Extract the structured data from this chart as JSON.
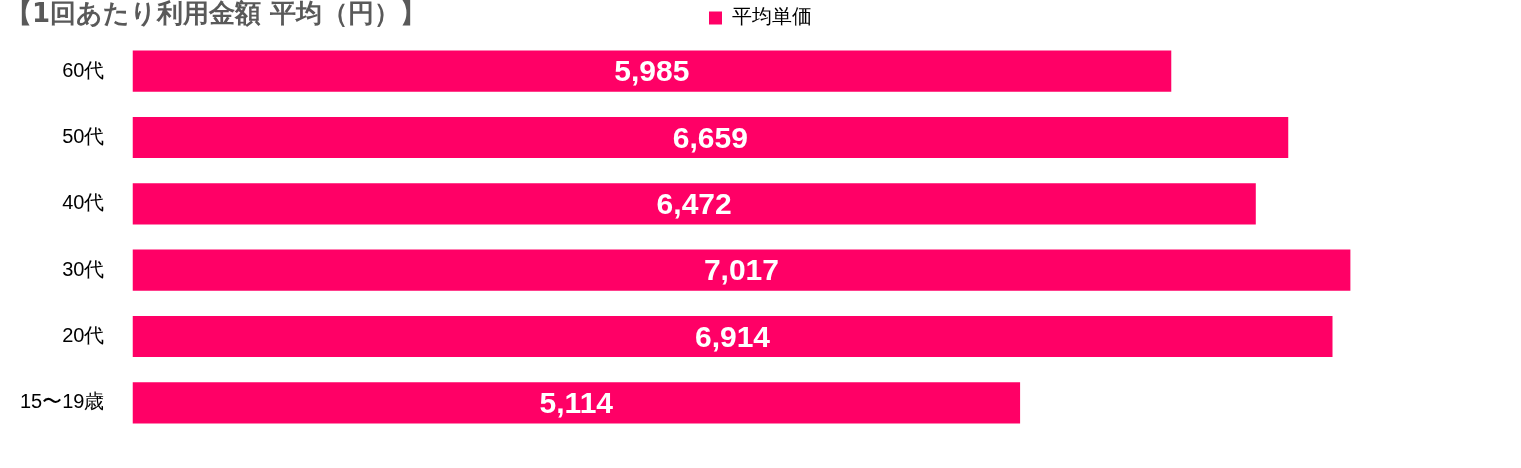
{
  "chart_data": {
    "type": "bar",
    "orientation": "horizontal",
    "title": "【1回あたり利用金額 平均（円）】",
    "categories": [
      "60代",
      "50代",
      "40代",
      "30代",
      "20代",
      "15〜19歳"
    ],
    "series": [
      {
        "name": "平均単価",
        "color": "#ff0066",
        "values": [
          5985,
          6659,
          6472,
          7017,
          6914,
          5114
        ],
        "value_labels": [
          "5,985",
          "6,659",
          "6,472",
          "7,017",
          "6,914",
          "5,114"
        ]
      }
    ],
    "legend": "top"
  }
}
